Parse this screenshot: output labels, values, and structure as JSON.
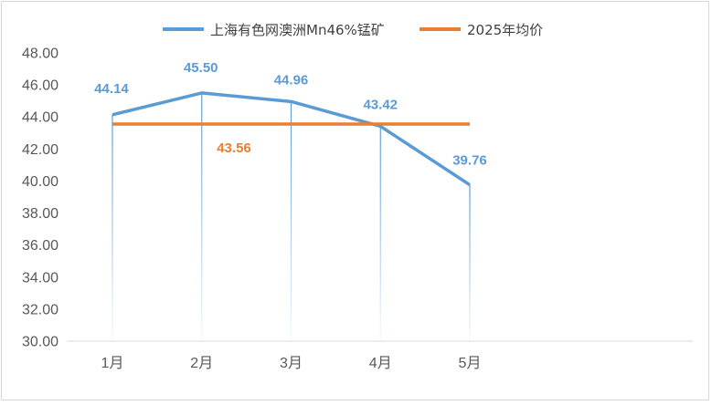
{
  "chart_data": {
    "type": "line",
    "categories": [
      "1月",
      "2月",
      "3月",
      "4月",
      "5月"
    ],
    "series": [
      {
        "name": "上海有色网澳洲Mn46%锰矿",
        "values": [
          44.14,
          45.5,
          44.96,
          43.42,
          39.76
        ],
        "color": "#5b9bd5",
        "labels": [
          "44.14",
          "45.50",
          "44.96",
          "43.42",
          "39.76"
        ]
      },
      {
        "name": "2025年均价",
        "values": [
          43.56,
          43.56,
          43.56,
          43.56,
          43.56
        ],
        "color": "#ed7d31",
        "labels": [
          "43.56"
        ]
      }
    ],
    "ylim": [
      30,
      48
    ],
    "yticks": [
      "30.00",
      "32.00",
      "34.00",
      "36.00",
      "38.00",
      "40.00",
      "42.00",
      "44.00",
      "46.00",
      "48.00"
    ],
    "title": "",
    "xlabel": "",
    "ylabel": "",
    "legend_position": "top",
    "grid": false,
    "drop_lines": true
  }
}
